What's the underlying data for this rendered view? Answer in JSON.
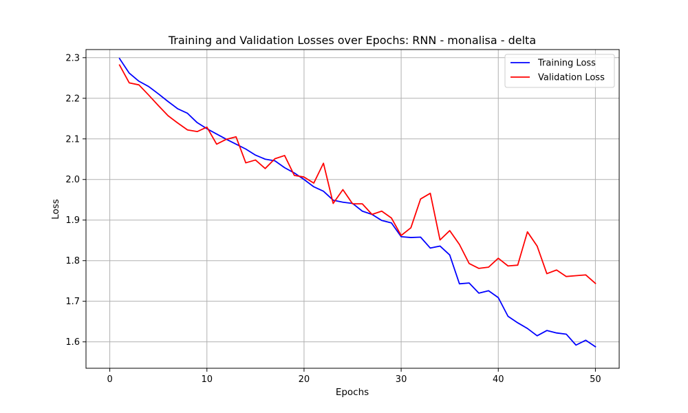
{
  "chart_data": {
    "type": "line",
    "title": "Training and Validation Losses over Epochs: RNN - monalisa - delta",
    "xlabel": "Epochs",
    "ylabel": "Loss",
    "xlim": [
      -2.45,
      52.45
    ],
    "ylim": [
      1.535,
      2.32
    ],
    "xticks": [
      0,
      10,
      20,
      30,
      40,
      50
    ],
    "yticks": [
      1.6,
      1.7,
      1.8,
      1.9,
      2.0,
      2.1,
      2.2,
      2.3
    ],
    "ytick_labels": [
      "1.6",
      "1.7",
      "1.8",
      "1.9",
      "2.0",
      "2.1",
      "2.2",
      "2.3"
    ],
    "grid": true,
    "legend": "upper right",
    "x": [
      1,
      2,
      3,
      4,
      5,
      6,
      7,
      8,
      9,
      10,
      11,
      12,
      13,
      14,
      15,
      16,
      17,
      18,
      19,
      20,
      21,
      22,
      23,
      24,
      25,
      26,
      27,
      28,
      29,
      30,
      31,
      32,
      33,
      34,
      35,
      36,
      37,
      38,
      39,
      40,
      41,
      42,
      43,
      44,
      45,
      46,
      47,
      48,
      49,
      50
    ],
    "series": [
      {
        "name": "Training Loss",
        "color": "#0000ff",
        "values": [
          2.298,
          2.262,
          2.242,
          2.229,
          2.211,
          2.192,
          2.174,
          2.163,
          2.14,
          2.125,
          2.112,
          2.099,
          2.087,
          2.075,
          2.06,
          2.05,
          2.046,
          2.029,
          2.016,
          2.0,
          1.982,
          1.971,
          1.949,
          1.944,
          1.941,
          1.922,
          1.914,
          1.899,
          1.893,
          1.859,
          1.857,
          1.858,
          1.831,
          1.836,
          1.814,
          1.743,
          1.745,
          1.72,
          1.726,
          1.709,
          1.663,
          1.647,
          1.633,
          1.615,
          1.628,
          1.622,
          1.619,
          1.592,
          1.604,
          1.588
        ]
      },
      {
        "name": "Validation Loss",
        "color": "#ff0000",
        "values": [
          2.282,
          2.238,
          2.233,
          2.208,
          2.182,
          2.157,
          2.139,
          2.122,
          2.118,
          2.129,
          2.087,
          2.099,
          2.105,
          2.041,
          2.048,
          2.027,
          2.051,
          2.059,
          2.01,
          2.006,
          1.991,
          2.04,
          1.941,
          1.975,
          1.94,
          1.94,
          1.914,
          1.922,
          1.905,
          1.862,
          1.881,
          1.952,
          1.966,
          1.851,
          1.874,
          1.84,
          1.793,
          1.781,
          1.784,
          1.806,
          1.787,
          1.789,
          1.871,
          1.836,
          1.768,
          1.777,
          1.761,
          1.763,
          1.765,
          1.744
        ]
      }
    ]
  }
}
